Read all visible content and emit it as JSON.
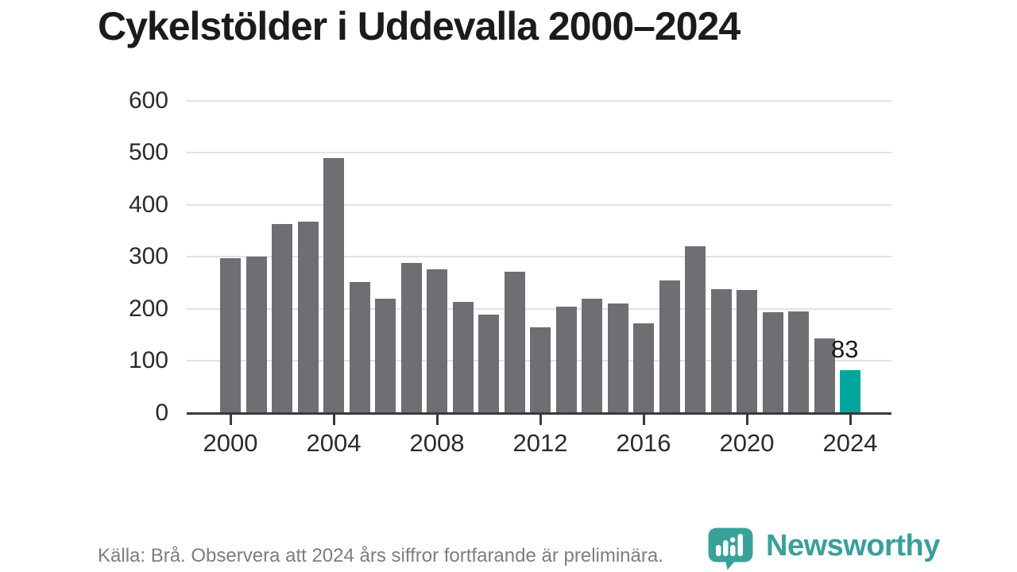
{
  "title": "Cykelstölder i Uddevalla 2000–2024",
  "source_note": "Källa: Brå. Observera att 2024 års siffror fortfarande är preliminära.",
  "logo": {
    "wordmark": "Newsworthy",
    "icon": "newsworthy-speech-bubble-bar-chart-icon",
    "color": "#39a09a"
  },
  "colors": {
    "bar_default": "#6e6e73",
    "bar_highlight": "#00a59c",
    "gridline": "#e2e2e2",
    "axis": "#3a3a3c",
    "tick_label": "#2b2b2e",
    "title_text": "#1b1b1d",
    "source_text": "#7d7d82"
  },
  "chart_data": {
    "type": "bar",
    "title": "Cykelstölder i Uddevalla 2000–2024",
    "xlabel": "",
    "ylabel": "",
    "x": [
      2000,
      2001,
      2002,
      2003,
      2004,
      2005,
      2006,
      2007,
      2008,
      2009,
      2010,
      2011,
      2012,
      2013,
      2014,
      2015,
      2016,
      2017,
      2018,
      2019,
      2020,
      2021,
      2022,
      2023,
      2024
    ],
    "values": [
      298,
      300,
      363,
      367,
      490,
      252,
      220,
      289,
      276,
      214,
      189,
      271,
      164,
      204,
      220,
      211,
      172,
      255,
      320,
      238,
      236,
      193,
      196,
      143,
      83
    ],
    "highlight_year": 2024,
    "highlight_value_label": "83",
    "y_ticks": [
      0,
      100,
      200,
      300,
      400,
      500,
      600
    ],
    "x_ticks": [
      2000,
      2004,
      2008,
      2012,
      2016,
      2020,
      2024
    ],
    "ylim": [
      0,
      600
    ],
    "grid": true,
    "legend": "none"
  }
}
